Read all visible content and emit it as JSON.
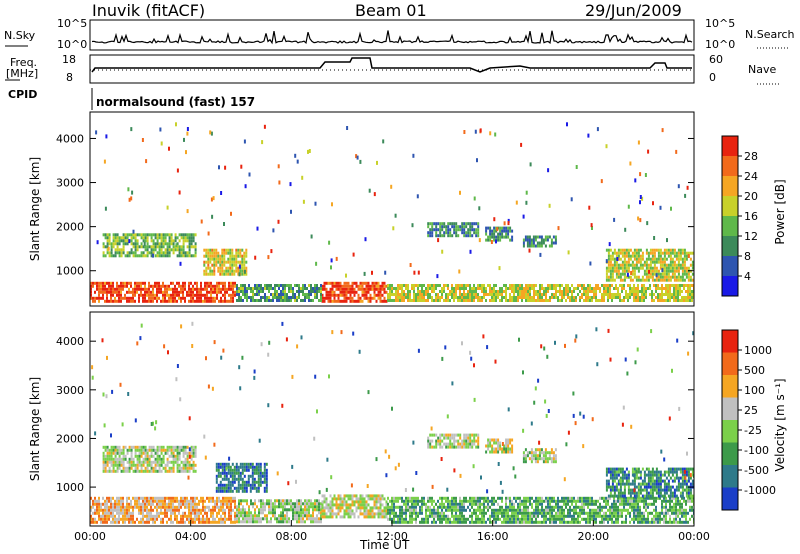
{
  "header": {
    "station": "Inuvik (fitACF)",
    "beam": "Beam 01",
    "date": "29/Jun/2009"
  },
  "status_panels": {
    "nsky_label": "N.Sky",
    "nsky_ticks": [
      "10^5",
      "10^0"
    ],
    "nsearch_label": "N.Search",
    "nsearch_ticks": [
      "10^5",
      "10^0"
    ],
    "freq_label": "Freq.",
    "freq_unit": "[MHz]",
    "freq_ticks": [
      "18",
      "8"
    ],
    "nave_label": "Nave",
    "nave_ticks": [
      "60",
      "0"
    ],
    "cpid_label": "CPID",
    "cpid_text": "normalsound (fast) 157"
  },
  "chart_data": [
    {
      "type": "heatmap",
      "name": "power",
      "ylabel": "Slant Range [km]",
      "yticks": [
        "1000",
        "2000",
        "3000",
        "4000"
      ],
      "ylim": [
        200,
        4600
      ],
      "xlim_hours": [
        0,
        24
      ],
      "colorbar_label": "Power [dB]",
      "colorbar_ticks": [
        "4",
        "8",
        "12",
        "16",
        "20",
        "24",
        "28"
      ],
      "colors": [
        "#1a1ae6",
        "#2e55b0",
        "#3c8a5a",
        "#5fb84a",
        "#c8d12a",
        "#f5a623",
        "#f26a1b",
        "#e8230f"
      ],
      "bands": [
        {
          "t0": 0.0,
          "t1": 5.8,
          "r0": 300,
          "r1": 750,
          "level": 0.9
        },
        {
          "t0": 9.2,
          "t1": 11.8,
          "r0": 300,
          "r1": 750,
          "level": 0.9
        },
        {
          "t0": 11.8,
          "t1": 24.0,
          "r0": 300,
          "r1": 700,
          "level": 0.55
        },
        {
          "t0": 5.8,
          "t1": 9.2,
          "r0": 300,
          "r1": 700,
          "level": 0.35
        },
        {
          "t0": 0.5,
          "t1": 4.2,
          "r0": 1350,
          "r1": 1850,
          "level": 0.45
        },
        {
          "t0": 4.5,
          "t1": 6.2,
          "r0": 900,
          "r1": 1500,
          "level": 0.6
        },
        {
          "t0": 13.4,
          "t1": 15.4,
          "r0": 1800,
          "r1": 2100,
          "level": 0.3
        },
        {
          "t0": 15.7,
          "t1": 16.8,
          "r0": 1700,
          "r1": 2000,
          "level": 0.3
        },
        {
          "t0": 17.2,
          "t1": 18.5,
          "r0": 1550,
          "r1": 1800,
          "level": 0.3
        },
        {
          "t0": 20.5,
          "t1": 24.0,
          "r0": 800,
          "r1": 1500,
          "level": 0.55
        }
      ]
    },
    {
      "type": "heatmap",
      "name": "velocity",
      "ylabel": "Slant Range [km]",
      "yticks": [
        "1000",
        "2000",
        "3000",
        "4000"
      ],
      "ylim": [
        200,
        4600
      ],
      "xlim_hours": [
        0,
        24
      ],
      "colorbar_label": "Velocity [m s⁻¹]",
      "colorbar_ticks": [
        "1000",
        "500",
        "100",
        "25",
        "-25",
        "-100",
        "-500",
        "-1000"
      ],
      "colors": [
        "#1a3ec8",
        "#2e7a8a",
        "#3c9a4a",
        "#7bd04a",
        "#c0c0c0",
        "#f5a623",
        "#f26a1b",
        "#e8230f"
      ],
      "bands": [
        {
          "t0": 0.0,
          "t1": 5.8,
          "r0": 300,
          "r1": 800,
          "level": 0.68
        },
        {
          "t0": 5.8,
          "t1": 9.2,
          "r0": 300,
          "r1": 750,
          "level": 0.48
        },
        {
          "t0": 9.2,
          "t1": 11.8,
          "r0": 400,
          "r1": 850,
          "level": 0.55
        },
        {
          "t0": 11.8,
          "t1": 24.0,
          "r0": 300,
          "r1": 800,
          "level": 0.35
        },
        {
          "t0": 0.5,
          "t1": 4.2,
          "r0": 1350,
          "r1": 1850,
          "level": 0.52
        },
        {
          "t0": 5.0,
          "t1": 7.0,
          "r0": 900,
          "r1": 1500,
          "level": 0.2
        },
        {
          "t0": 13.4,
          "t1": 15.4,
          "r0": 1800,
          "r1": 2100,
          "level": 0.52
        },
        {
          "t0": 15.7,
          "t1": 16.8,
          "r0": 1700,
          "r1": 2000,
          "level": 0.52
        },
        {
          "t0": 17.2,
          "t1": 18.5,
          "r0": 1550,
          "r1": 1800,
          "level": 0.52
        },
        {
          "t0": 20.5,
          "t1": 24.0,
          "r0": 800,
          "r1": 1400,
          "level": 0.25
        }
      ]
    }
  ],
  "x_axis": {
    "tick_labels": [
      "00:00",
      "04:00",
      "08:00",
      "12:00",
      "16:00",
      "20:00",
      "00:00"
    ],
    "label": "Time UT"
  }
}
